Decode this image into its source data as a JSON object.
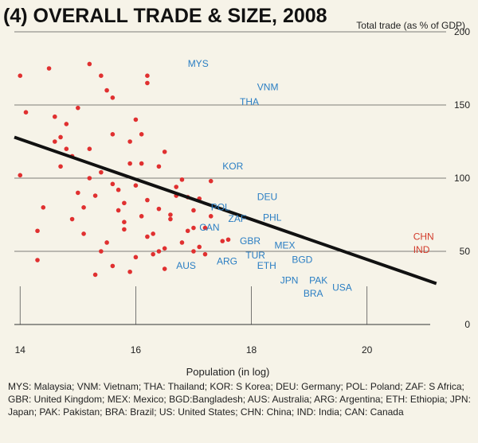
{
  "chart_data": {
    "type": "scatter",
    "title": "(4) OVERALL TRADE & SIZE, 2008",
    "ylabel": "Total trade (as % of GDP)",
    "xlabel": "Population (in log)",
    "xlim": [
      13.9,
      21.3
    ],
    "ylim": [
      0,
      200
    ],
    "xticks": [
      14,
      16,
      18,
      20
    ],
    "yticks": [
      0,
      50,
      100,
      150,
      200
    ],
    "grid": "horizontal",
    "trendline": {
      "x": [
        13.9,
        21.2
      ],
      "y": [
        128,
        28
      ]
    },
    "points": [
      [
        14.0,
        170
      ],
      [
        14.1,
        145
      ],
      [
        14.0,
        102
      ],
      [
        14.3,
        64
      ],
      [
        14.3,
        44
      ],
      [
        14.4,
        80
      ],
      [
        14.5,
        175
      ],
      [
        14.6,
        125
      ],
      [
        14.6,
        142
      ],
      [
        14.7,
        128
      ],
      [
        14.7,
        108
      ],
      [
        14.9,
        72
      ],
      [
        14.9,
        115
      ],
      [
        15.0,
        90
      ],
      [
        15.1,
        62
      ],
      [
        15.2,
        100
      ],
      [
        15.2,
        120
      ],
      [
        15.3,
        34
      ],
      [
        15.4,
        170
      ],
      [
        15.5,
        160
      ],
      [
        15.6,
        155
      ],
      [
        15.6,
        130
      ],
      [
        15.7,
        92
      ],
      [
        15.8,
        83
      ],
      [
        15.9,
        110
      ],
      [
        16.0,
        46
      ],
      [
        16.1,
        74
      ],
      [
        16.2,
        165
      ],
      [
        16.4,
        50
      ],
      [
        15.5,
        56
      ],
      [
        15.3,
        88
      ],
      [
        15.8,
        65
      ],
      [
        15.9,
        125
      ],
      [
        14.8,
        137
      ],
      [
        15.2,
        178
      ],
      [
        15.4,
        104
      ],
      [
        15.6,
        96
      ],
      [
        15.7,
        78
      ],
      [
        15.9,
        36
      ],
      [
        16.0,
        95
      ],
      [
        16.1,
        130
      ],
      [
        16.2,
        85
      ],
      [
        16.3,
        62
      ],
      [
        16.4,
        79
      ],
      [
        16.5,
        38
      ],
      [
        16.6,
        72
      ],
      [
        16.7,
        88
      ],
      [
        16.8,
        99
      ],
      [
        16.9,
        64
      ],
      [
        17.0,
        78
      ],
      [
        17.1,
        53
      ],
      [
        17.2,
        66
      ],
      [
        17.3,
        74
      ],
      [
        17.5,
        57
      ],
      [
        17.1,
        86
      ],
      [
        16.3,
        48
      ],
      [
        16.5,
        118
      ],
      [
        16.9,
        87
      ],
      [
        17.0,
        66
      ],
      [
        16.2,
        60
      ],
      [
        16.5,
        52
      ],
      [
        16.6,
        75
      ],
      [
        15.1,
        80
      ],
      [
        15.4,
        50
      ],
      [
        16.1,
        110
      ],
      [
        16.4,
        108
      ],
      [
        16.2,
        170
      ],
      [
        15.0,
        148
      ],
      [
        14.8,
        120
      ],
      [
        15.6,
        40
      ],
      [
        16.0,
        140
      ],
      [
        16.8,
        56
      ],
      [
        17.0,
        50
      ],
      [
        17.2,
        48
      ],
      [
        17.3,
        98
      ],
      [
        15.8,
        70
      ],
      [
        16.7,
        94
      ],
      [
        17.6,
        58
      ]
    ],
    "labels": [
      {
        "text": "MYS",
        "x": 16.9,
        "y": 176,
        "highlight": false
      },
      {
        "text": "VNM",
        "x": 18.1,
        "y": 160,
        "highlight": false
      },
      {
        "text": "THA",
        "x": 17.8,
        "y": 150,
        "highlight": false
      },
      {
        "text": "KOR",
        "x": 17.5,
        "y": 106,
        "highlight": false
      },
      {
        "text": "DEU",
        "x": 18.1,
        "y": 85,
        "highlight": false
      },
      {
        "text": "POL",
        "x": 17.3,
        "y": 78,
        "highlight": false
      },
      {
        "text": "ZAF",
        "x": 17.6,
        "y": 70,
        "highlight": false
      },
      {
        "text": "PHL",
        "x": 18.2,
        "y": 71,
        "highlight": false
      },
      {
        "text": "CAN",
        "x": 17.1,
        "y": 64,
        "highlight": false
      },
      {
        "text": "GBR",
        "x": 17.8,
        "y": 55,
        "highlight": false
      },
      {
        "text": "MEX",
        "x": 18.4,
        "y": 52,
        "highlight": false
      },
      {
        "text": "TUR",
        "x": 17.9,
        "y": 45,
        "highlight": false
      },
      {
        "text": "BGD",
        "x": 18.7,
        "y": 42,
        "highlight": false
      },
      {
        "text": "ETH",
        "x": 18.1,
        "y": 38,
        "highlight": false
      },
      {
        "text": "AUS",
        "x": 16.7,
        "y": 38,
        "highlight": false
      },
      {
        "text": "ARG",
        "x": 17.4,
        "y": 41,
        "highlight": false
      },
      {
        "text": "JPN",
        "x": 18.5,
        "y": 28,
        "highlight": false
      },
      {
        "text": "PAK",
        "x": 19.0,
        "y": 28,
        "highlight": false
      },
      {
        "text": "BRA",
        "x": 18.9,
        "y": 19,
        "highlight": false
      },
      {
        "text": "USA",
        "x": 19.4,
        "y": 23,
        "highlight": false
      },
      {
        "text": "CHN",
        "x": 20.8,
        "y": 58,
        "highlight": true
      },
      {
        "text": "IND",
        "x": 20.8,
        "y": 49,
        "highlight": true
      }
    ],
    "legend_text": "MYS: Malaysia; VNM: Vietnam; THA: Thailand; KOR: S Korea; DEU: Germany; POL: Poland; ZAF: S Africa; GBR: United Kingdom; MEX: Mexico; BGD:Bangladesh; AUS: Australia; ARG: Argentina; ETH: Ethiopia; JPN: Japan; PAK: Pakistan; BRA: Brazil; US: United States; CHN: China; IND: India; CAN: Canada"
  }
}
